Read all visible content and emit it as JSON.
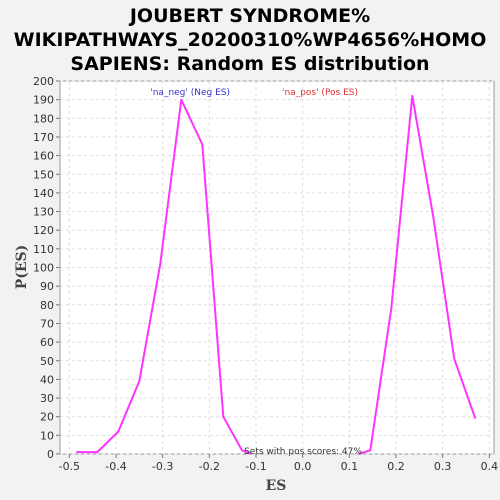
{
  "chart_data": {
    "type": "line",
    "title_lines": [
      "JOUBERT SYNDROME%",
      "WIKIPATHWAYS_20200310%WP4656%HOMO",
      "SAPIENS: Random ES distribution"
    ],
    "xlabel": "ES",
    "ylabel": "P(ES)",
    "xlim": [
      -0.52,
      0.41
    ],
    "ylim": [
      0,
      200
    ],
    "x_ticks": [
      -0.5,
      -0.4,
      -0.3,
      -0.2,
      -0.1,
      0.0,
      0.1,
      0.2,
      0.3,
      0.4
    ],
    "x_tick_labels": [
      "-0.5",
      "-0.4",
      "-0.3",
      "-0.2",
      "-0.1",
      "0.0",
      "0.1",
      "0.2",
      "0.3",
      "0.4"
    ],
    "y_ticks": [
      0,
      10,
      20,
      30,
      40,
      50,
      60,
      70,
      80,
      90,
      100,
      110,
      120,
      130,
      140,
      150,
      160,
      170,
      180,
      190,
      200
    ],
    "grid": true,
    "legend": [
      {
        "label": "'na_neg' (Neg ES)",
        "color": "#3333cc"
      },
      {
        "label": "'na_pos' (Pos ES)",
        "color": "#e03030"
      }
    ],
    "annotation": "Sets with pos scores: 47%",
    "series": [
      {
        "color": "#ff33ff",
        "points": [
          [
            -0.485,
            1
          ],
          [
            -0.44,
            1
          ],
          [
            -0.395,
            12
          ],
          [
            -0.35,
            39
          ],
          [
            -0.305,
            102
          ],
          [
            -0.26,
            190
          ],
          [
            -0.215,
            166
          ],
          [
            -0.17,
            20
          ],
          [
            -0.13,
            2
          ],
          [
            -0.11,
            0
          ]
        ]
      },
      {
        "color": "#ff33ff",
        "points": [
          [
            0.12,
            0
          ],
          [
            0.145,
            2
          ],
          [
            0.19,
            78
          ],
          [
            0.235,
            192
          ],
          [
            0.28,
            127
          ],
          [
            0.325,
            51
          ],
          [
            0.37,
            19
          ]
        ]
      }
    ]
  }
}
